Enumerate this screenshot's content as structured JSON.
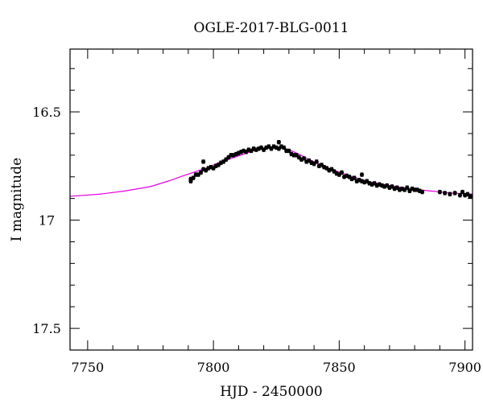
{
  "chart_data": {
    "type": "scatter",
    "title": "OGLE-2017-BLG-0011",
    "xlabel": "HJD - 2450000",
    "ylabel": "I magnitude",
    "xlim": [
      7743,
      7903
    ],
    "ylim": [
      17.6,
      16.21
    ],
    "y_inverted": true,
    "grid": false,
    "x_ticks": [
      7750,
      7800,
      7850,
      7900
    ],
    "y_ticks": [
      16.5,
      17,
      17.5
    ],
    "series": [
      {
        "kind": "model-curve",
        "color": "#e400e4",
        "x": [
          7743,
          7755,
          7765,
          7775,
          7782,
          7788,
          7792,
          7797,
          7802,
          7807,
          7812,
          7816,
          7820,
          7824,
          7827,
          7830,
          7834,
          7838,
          7843,
          7848,
          7853,
          7858,
          7863,
          7870,
          7878,
          7886,
          7895,
          7903
        ],
        "y": [
          16.89,
          16.88,
          16.865,
          16.845,
          16.82,
          16.795,
          16.78,
          16.76,
          16.735,
          16.715,
          16.695,
          16.68,
          16.67,
          16.665,
          16.665,
          16.675,
          16.695,
          16.72,
          16.745,
          16.77,
          16.79,
          16.81,
          16.825,
          16.84,
          16.855,
          16.865,
          16.875,
          16.88
        ]
      },
      {
        "kind": "data",
        "color": "#000000",
        "x": [
          7791,
          7792,
          7793,
          7794,
          7795,
          7796,
          7797,
          7798,
          7799,
          7800,
          7801,
          7802,
          7803,
          7804,
          7805,
          7806,
          7807,
          7808,
          7809,
          7810,
          7811,
          7812,
          7813,
          7814,
          7815,
          7816,
          7817,
          7818,
          7819,
          7820,
          7821,
          7822,
          7823,
          7824,
          7825,
          7826,
          7827,
          7828,
          7829,
          7830,
          7831,
          7832,
          7833,
          7834,
          7835,
          7836,
          7837,
          7838,
          7839,
          7840,
          7841,
          7842,
          7843,
          7844,
          7845,
          7846,
          7847,
          7848,
          7849,
          7850,
          7851,
          7852,
          7853,
          7854,
          7855,
          7856,
          7857,
          7858,
          7859,
          7860,
          7861,
          7862,
          7863,
          7864,
          7865,
          7866,
          7867,
          7868,
          7869,
          7870,
          7871,
          7872,
          7873,
          7874,
          7875,
          7876,
          7877,
          7878,
          7879,
          7880,
          7881,
          7882,
          7883,
          7890,
          7892,
          7894,
          7896,
          7898,
          7899,
          7900,
          7901,
          7902,
          7903,
          7791,
          7796,
          7826,
          7859
        ],
        "y": [
          16.82,
          16.805,
          16.79,
          16.79,
          16.78,
          16.765,
          16.77,
          16.76,
          16.755,
          16.76,
          16.75,
          16.745,
          16.735,
          16.73,
          16.72,
          16.71,
          16.7,
          16.7,
          16.695,
          16.69,
          16.685,
          16.68,
          16.685,
          16.675,
          16.68,
          16.67,
          16.675,
          16.67,
          16.665,
          16.675,
          16.665,
          16.66,
          16.67,
          16.66,
          16.665,
          16.67,
          16.66,
          16.665,
          16.68,
          16.68,
          16.695,
          16.7,
          16.7,
          16.71,
          16.72,
          16.715,
          16.73,
          16.725,
          16.735,
          16.74,
          16.73,
          16.75,
          16.745,
          16.755,
          16.76,
          16.77,
          16.765,
          16.775,
          16.785,
          16.79,
          16.78,
          16.8,
          16.795,
          16.8,
          16.81,
          16.805,
          16.82,
          16.815,
          16.82,
          16.825,
          16.82,
          16.83,
          16.835,
          16.83,
          16.84,
          16.835,
          16.84,
          16.845,
          16.84,
          16.85,
          16.845,
          16.855,
          16.85,
          16.86,
          16.855,
          16.86,
          16.85,
          16.865,
          16.855,
          16.86,
          16.86,
          16.865,
          16.87,
          16.87,
          16.875,
          16.88,
          16.875,
          16.885,
          16.87,
          16.885,
          16.88,
          16.89,
          16.89,
          16.81,
          16.73,
          16.64,
          16.79
        ],
        "err": 0.008
      }
    ]
  }
}
